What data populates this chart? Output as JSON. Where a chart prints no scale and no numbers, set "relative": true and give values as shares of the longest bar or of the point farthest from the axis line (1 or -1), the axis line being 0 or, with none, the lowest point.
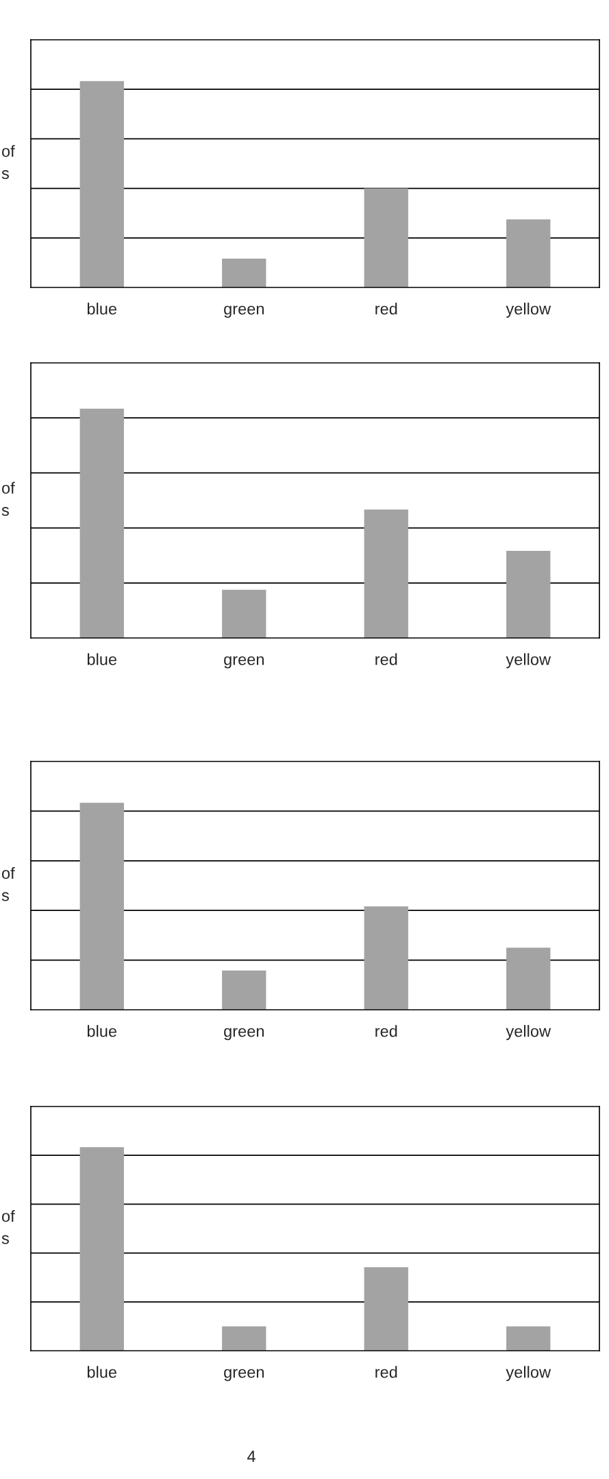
{
  "chart_data": [
    {
      "type": "bar",
      "ylabel": "of\ns",
      "categories": [
        "blue",
        "green",
        "red",
        "yellow"
      ],
      "values": [
        1,
        0.14,
        0.48,
        0.33
      ],
      "color": "#a3a3a3",
      "relative": true,
      "grid": "y",
      "legend": false
    },
    {
      "type": "bar",
      "ylabel": "of\ns",
      "categories": [
        "blue",
        "green",
        "red",
        "yellow"
      ],
      "values": [
        1,
        0.21,
        0.56,
        0.38
      ],
      "color": "#a3a3a3",
      "relative": true,
      "grid": "y",
      "legend": false
    },
    {
      "type": "bar",
      "ylabel": "of\ns",
      "categories": [
        "blue",
        "green",
        "red",
        "yellow"
      ],
      "values": [
        1,
        0.19,
        0.5,
        0.3
      ],
      "color": "#a3a3a3",
      "relative": true,
      "grid": "y",
      "legend": false
    },
    {
      "type": "bar",
      "ylabel": "of\ns",
      "categories": [
        "blue",
        "green",
        "red",
        "yellow"
      ],
      "values": [
        1,
        0.12,
        0.41,
        0.12
      ],
      "color": "#a3a3a3",
      "relative": true,
      "grid": "y",
      "legend": false,
      "annotations": [
        "4"
      ]
    }
  ]
}
